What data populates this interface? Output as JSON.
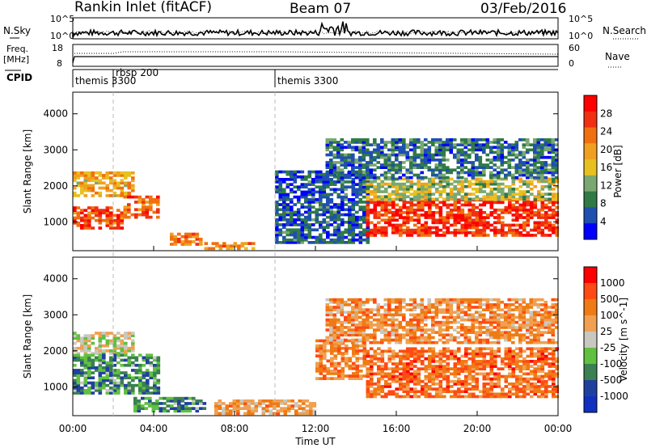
{
  "header": {
    "title": "Rankin Inlet (fitACF)",
    "beam": "Beam 07",
    "date": "03/Feb/2016"
  },
  "strip_labels": {
    "nsky": "N.Sky",
    "nsearch": "N.Search",
    "freq_line1": "Freq.",
    "freq_line2": "[MHz]",
    "nave": "Nave",
    "cpid": "CPID",
    "nsky_ticks": [
      "10^5",
      "10^0"
    ],
    "nsearch_ticks": [
      "10^5",
      "10^0"
    ],
    "freq_ticks": [
      "18",
      "8"
    ],
    "nave_ticks": [
      "60",
      "0"
    ]
  },
  "cpid_segments": [
    {
      "label": "themis 3300",
      "start_hour": 0
    },
    {
      "label": "rbsp 200",
      "start_hour": 2
    },
    {
      "label": "themis 3300",
      "start_hour": 10
    }
  ],
  "colors": {
    "power": [
      "#0000ff",
      "#1f4fb0",
      "#2f7a46",
      "#7aa870",
      "#e8c020",
      "#f0a020",
      "#f07010",
      "#f03010",
      "#ff0000"
    ],
    "velocity": [
      "#ff0000",
      "#ff4a14",
      "#f07a14",
      "#f0a050",
      "#c8c8c0",
      "#60c040",
      "#3a8050",
      "#2040a0",
      "#1030c0"
    ]
  },
  "chart_data": [
    {
      "type": "heatmap",
      "name": "power",
      "ylabel": "Slant Range [km]",
      "xlabel": "Time UT",
      "xlim": [
        0,
        24
      ],
      "ylim": [
        200,
        4600
      ],
      "x_ticks": [
        "00:00",
        "04:00",
        "08:00",
        "12:00",
        "16:00",
        "20:00",
        "00:00"
      ],
      "y_ticks": [
        1000,
        2000,
        3000,
        4000
      ],
      "colorbar": {
        "label": "Power [dB]",
        "ticks": [
          "28",
          "24",
          "20",
          "16",
          "12",
          "8",
          "4"
        ]
      },
      "regions": [
        {
          "t0": 0.0,
          "t1": 3.0,
          "r0": 1700,
          "r1": 2400,
          "level": 0.6
        },
        {
          "t0": 0.0,
          "t1": 2.5,
          "r0": 800,
          "r1": 1400,
          "level": 0.85
        },
        {
          "t0": 2.5,
          "t1": 4.2,
          "r0": 1100,
          "r1": 1700,
          "level": 0.8
        },
        {
          "t0": 4.8,
          "t1": 6.4,
          "r0": 350,
          "r1": 700,
          "level": 0.75
        },
        {
          "t0": 6.5,
          "t1": 9.0,
          "r0": 230,
          "r1": 420,
          "level": 0.7
        },
        {
          "t0": 10.0,
          "t1": 14.5,
          "r0": 400,
          "r1": 2400,
          "level": 0.15
        },
        {
          "t0": 14.5,
          "t1": 24.0,
          "r0": 600,
          "r1": 1600,
          "level": 0.9
        },
        {
          "t0": 14.5,
          "t1": 24.0,
          "r0": 1600,
          "r1": 2200,
          "level": 0.45
        },
        {
          "t0": 12.5,
          "t1": 24.0,
          "r0": 2200,
          "r1": 3300,
          "level": 0.2
        }
      ]
    },
    {
      "type": "heatmap",
      "name": "velocity",
      "ylabel": "Slant Range [km]",
      "xlabel": "Time UT",
      "xlim": [
        0,
        24
      ],
      "ylim": [
        200,
        4600
      ],
      "x_ticks": [
        "00:00",
        "04:00",
        "08:00",
        "12:00",
        "16:00",
        "20:00",
        "00:00"
      ],
      "y_ticks": [
        1000,
        2000,
        3000,
        4000
      ],
      "colorbar": {
        "label": "Velocity [m s^-1]",
        "ticks": [
          "1000",
          "500",
          "100",
          "25",
          "-25",
          "-100",
          "-500",
          "-1000"
        ]
      },
      "regions": [
        {
          "t0": 0.0,
          "t1": 3.0,
          "r0": 1900,
          "r1": 2500,
          "level": 0.5
        },
        {
          "t0": 0.0,
          "t1": 4.2,
          "r0": 800,
          "r1": 1900,
          "level": 0.72
        },
        {
          "t0": 3.0,
          "t1": 6.5,
          "r0": 300,
          "r1": 700,
          "level": 0.72
        },
        {
          "t0": 7.0,
          "t1": 12.0,
          "r0": 230,
          "r1": 600,
          "level": 0.35
        },
        {
          "t0": 12.0,
          "t1": 14.5,
          "r0": 1200,
          "r1": 2300,
          "level": 0.25
        },
        {
          "t0": 14.5,
          "t1": 24.0,
          "r0": 700,
          "r1": 2100,
          "level": 0.22
        },
        {
          "t0": 12.5,
          "t1": 24.0,
          "r0": 2200,
          "r1": 3400,
          "level": 0.3
        }
      ]
    }
  ]
}
